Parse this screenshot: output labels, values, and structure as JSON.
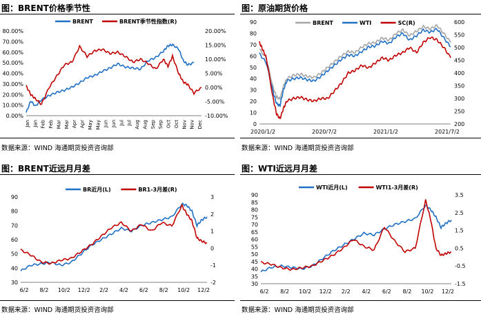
{
  "panels": [
    {
      "title": "图：BRENT价格季节性",
      "source": "数据来源：WIND   海通期货投资咨询部"
    },
    {
      "title": "图：原油期货价格",
      "source": "数据来源：WIND   海通期货投资咨询部"
    },
    {
      "title": "图：BRENT近远月月差",
      "source": "数据来源：WIND   海通期货投资咨询部"
    },
    {
      "title": "图：WTI近远月月差",
      "source": "数据来源：WIND   海通期货投资咨询部"
    }
  ],
  "colors": {
    "blue": "#1f6fc5",
    "red": "#c00000",
    "gray": "#a6a6a6"
  },
  "chart_data": [
    {
      "type": "line",
      "title": "BRENT价格季节性",
      "x_ticks": [
        "Jan",
        "Jan",
        "Feb",
        "Feb",
        "Mar",
        "Mar",
        "Apr",
        "Apr",
        "May",
        "May",
        "Jun",
        "Jun",
        "Jul",
        "Jul",
        "Aug",
        "Aug",
        "Sep",
        "Sep",
        "Oct",
        "Oct",
        "Nov",
        "Nov",
        "Dec"
      ],
      "y_left": {
        "min": 0,
        "max": 80,
        "ticks": [
          "0.00%",
          "10.00%",
          "20.00%",
          "30.00%",
          "40.00%",
          "50.00%",
          "60.00%",
          "70.00%",
          "80.00%"
        ]
      },
      "y_right": {
        "min": -10,
        "max": 20,
        "ticks": [
          "-10.00%",
          "-5.00%",
          "0.00%",
          "5.00%",
          "10.00%",
          "15.00%",
          "20.00%"
        ]
      },
      "legend": "top",
      "series": [
        {
          "name": "BRENT",
          "axis": "left",
          "color": "#1f6fc5",
          "x": [
            0,
            0.3,
            0.6,
            1,
            1.5,
            2,
            2.5,
            3,
            3.5,
            4,
            4.5,
            5,
            5.5,
            6,
            6.5,
            7,
            7.5,
            8,
            8.5,
            9,
            9.3,
            9.6,
            10,
            10.3,
            10.6,
            11
          ],
          "y": [
            3,
            14,
            9,
            15,
            19,
            22,
            24,
            27,
            31,
            36,
            38,
            42,
            45,
            49,
            46,
            45,
            44,
            52,
            55,
            61,
            66,
            67,
            63,
            52,
            48,
            50
          ]
        },
        {
          "name": "BRENT季节性指数(R)",
          "axis": "right",
          "color": "#c00000",
          "x": [
            0,
            0.3,
            0.6,
            1,
            1.5,
            2,
            2.5,
            3,
            3.5,
            4,
            4.5,
            5,
            5.5,
            6,
            6.5,
            7,
            7.5,
            8,
            8.5,
            9,
            9.3,
            9.6,
            10,
            10.3,
            10.6,
            11,
            11.5
          ],
          "y": [
            0.5,
            -2.5,
            -4,
            -6,
            0,
            4,
            8,
            9,
            14.5,
            11,
            13,
            13.5,
            12,
            12.5,
            11,
            9,
            10,
            8.5,
            6.5,
            10,
            7.5,
            11,
            5,
            2,
            1,
            -2,
            0
          ]
        }
      ]
    },
    {
      "type": "line",
      "title": "原油期货价格",
      "x_ticks": [
        "2020/1/2",
        "2020/7/2",
        "2021/1/2",
        "2021/7/2"
      ],
      "x_range": [
        0,
        28
      ],
      "y_left": {
        "min": 0,
        "max": 90,
        "ticks": [
          "0",
          "10",
          "20",
          "30",
          "40",
          "50",
          "60",
          "70",
          "80",
          "90"
        ]
      },
      "y_right": {
        "min": 200,
        "max": 600,
        "ticks": [
          "200",
          "250",
          "300",
          "350",
          "400",
          "450",
          "500",
          "550",
          "600"
        ]
      },
      "legend": "top",
      "series": [
        {
          "name": "BRENT",
          "axis": "left",
          "color": "#a6a6a6",
          "x": [
            0,
            1,
            2,
            2.5,
            3,
            3.5,
            4,
            5,
            6,
            7,
            8,
            9,
            10,
            11,
            12,
            13,
            14,
            15,
            16,
            17,
            18,
            19,
            20,
            21,
            22,
            23,
            24,
            25,
            26,
            27,
            28
          ],
          "y": [
            66,
            58,
            32,
            24,
            22,
            33,
            40,
            43,
            44,
            42,
            41,
            45,
            50,
            55,
            60,
            64,
            63,
            68,
            71,
            72,
            76,
            74,
            80,
            83,
            78,
            82,
            86,
            84,
            87,
            80,
            72
          ]
        },
        {
          "name": "WTI",
          "axis": "left",
          "color": "#1f6fc5",
          "x": [
            0,
            1,
            2,
            2.5,
            3,
            3.5,
            4,
            5,
            6,
            7,
            8,
            9,
            10,
            11,
            12,
            13,
            14,
            15,
            16,
            17,
            18,
            19,
            20,
            21,
            22,
            23,
            24,
            25,
            26,
            27,
            28
          ],
          "y": [
            62,
            54,
            28,
            18,
            16,
            30,
            38,
            40,
            41,
            39,
            38,
            42,
            47,
            52,
            57,
            61,
            60,
            64,
            68,
            69,
            73,
            71,
            77,
            80,
            74,
            78,
            83,
            81,
            84,
            76,
            68
          ]
        },
        {
          "name": "SC(R)",
          "axis": "right",
          "color": "#c00000",
          "x": [
            0,
            0.5,
            1,
            2,
            2.5,
            3,
            3.5,
            4,
            5,
            6,
            7,
            8,
            9,
            10,
            11,
            12,
            13,
            14,
            15,
            16,
            17,
            18,
            19,
            20,
            21,
            22,
            23,
            24,
            25,
            26,
            27,
            28
          ],
          "y": [
            520,
            490,
            460,
            300,
            240,
            220,
            260,
            290,
            300,
            305,
            295,
            290,
            300,
            300,
            330,
            360,
            400,
            410,
            430,
            420,
            440,
            460,
            450,
            470,
            480,
            500,
            480,
            520,
            540,
            530,
            500,
            460
          ]
        }
      ]
    },
    {
      "type": "line",
      "title": "BRENT近远月月差",
      "x_ticks": [
        "6/2",
        "8/2",
        "10/2",
        "12/2",
        "2/2",
        "4/2",
        "6/2",
        "8/2",
        "10/2",
        "12/2"
      ],
      "x_range": [
        0,
        18.5
      ],
      "y_left": {
        "min": 30,
        "max": 90,
        "ticks": [
          "30",
          "40",
          "50",
          "60",
          "70",
          "80",
          "90"
        ]
      },
      "y_right": {
        "min": -2,
        "max": 3,
        "ticks": [
          "-2",
          "-1",
          "0",
          "1",
          "2",
          "3"
        ]
      },
      "legend": "top",
      "series": [
        {
          "name": "BR近月(L)",
          "axis": "left",
          "color": "#1f6fc5",
          "x": [
            0,
            1,
            2,
            3,
            4,
            5,
            6,
            7,
            8,
            9,
            10,
            11,
            12,
            13,
            14,
            15,
            16,
            16.5,
            17,
            17.5,
            18,
            18.5
          ],
          "y": [
            38,
            42,
            43,
            44,
            42,
            44,
            50,
            56,
            60,
            64,
            68,
            66,
            70,
            72,
            74,
            76,
            85,
            84,
            80,
            70,
            74,
            76
          ]
        },
        {
          "name": "BR1-3月差(R)",
          "axis": "right",
          "color": "#c00000",
          "x": [
            0,
            1,
            2,
            3,
            4,
            5,
            6,
            7,
            8,
            9,
            10,
            11,
            12,
            13,
            14,
            15,
            16,
            16.5,
            17,
            17.5,
            18,
            18.5
          ],
          "y": [
            -0.1,
            -0.4,
            -0.8,
            -0.9,
            -0.7,
            -0.6,
            -0.2,
            0.2,
            0.7,
            1.2,
            1.5,
            1.0,
            1.4,
            1.0,
            1.5,
            1.3,
            2.5,
            2.0,
            1.6,
            0.6,
            0.4,
            0.3
          ]
        }
      ]
    },
    {
      "type": "line",
      "title": "WTI近远月月差",
      "x_ticks": [
        "6/2",
        "8/2",
        "10/2",
        "12/2",
        "2/2",
        "4/2",
        "6/2",
        "8/2",
        "10/2",
        "12/2"
      ],
      "x_range": [
        0,
        18.5
      ],
      "y_left": {
        "min": 30,
        "max": 90,
        "ticks": [
          "30",
          "35",
          "40",
          "45",
          "50",
          "55",
          "60",
          "65",
          "70",
          "75",
          "80",
          "85",
          "90"
        ]
      },
      "y_right": {
        "min": -1.5,
        "max": 3.5,
        "ticks": [
          "-1.5",
          "-0.5",
          "0.5",
          "1.5",
          "2.5",
          "3.5"
        ]
      },
      "legend": "top",
      "series": [
        {
          "name": "WTI近月(L)",
          "axis": "left",
          "color": "#1f6fc5",
          "x": [
            0,
            1,
            2,
            3,
            4,
            5,
            6,
            7,
            8,
            9,
            10,
            11,
            12,
            13,
            14,
            15,
            16,
            16.5,
            17,
            17.5,
            18,
            18.5
          ],
          "y": [
            38,
            41,
            42,
            41,
            40,
            42,
            47,
            52,
            56,
            60,
            64,
            63,
            67,
            70,
            72,
            74,
            83,
            80,
            75,
            68,
            71,
            73
          ]
        },
        {
          "name": "WTI1-3月差(R)",
          "axis": "right",
          "color": "#c00000",
          "x": [
            0,
            1,
            2,
            3,
            4,
            5,
            6,
            7,
            8,
            9,
            10,
            11,
            12,
            13,
            14,
            15,
            16,
            16.5,
            17,
            17.5,
            18,
            18.5
          ],
          "y": [
            -0.3,
            -0.4,
            -0.6,
            -0.7,
            -0.6,
            -0.5,
            -0.2,
            0.1,
            0.5,
            1.0,
            0.6,
            0.4,
            1.7,
            0.9,
            0.3,
            0.5,
            3.2,
            2.1,
            0.5,
            0.1,
            0.2,
            0.3
          ]
        }
      ]
    }
  ]
}
